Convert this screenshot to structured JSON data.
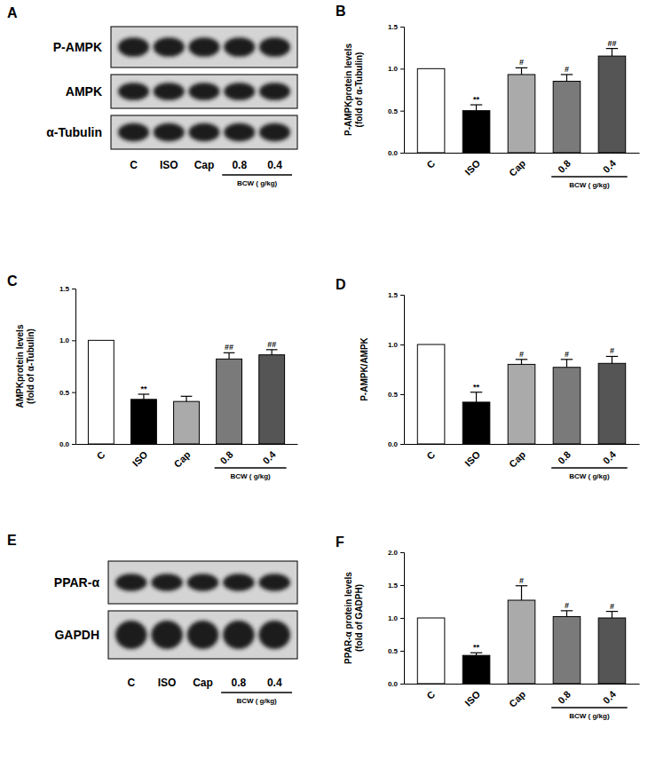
{
  "chart_data": [
    {
      "type": "bar",
      "panel_label": "B",
      "ylabel": [
        "P-AMPKprotein levels",
        "(fold of α-Tubulin)"
      ],
      "categories": [
        "C",
        "ISO",
        "Cap",
        "0.8",
        "0.4"
      ],
      "values": [
        1.0,
        0.5,
        0.93,
        0.85,
        1.15
      ],
      "errors": [
        null,
        0.07,
        0.08,
        0.08,
        0.09
      ],
      "significance": [
        null,
        "**",
        "#",
        "#",
        "##"
      ],
      "colors": [
        "#ffffff",
        "#000000",
        "#aaaaaa",
        "#7a7a7a",
        "#555555"
      ],
      "ylim": [
        0,
        1.5
      ],
      "yticks": [
        {
          "value": 0,
          "label": "0.0"
        },
        {
          "value": 0.5,
          "label": "0.5"
        },
        {
          "value": 1,
          "label": "1.0"
        },
        {
          "value": 1.5,
          "label": "1.5"
        }
      ],
      "group": {
        "label": "BCW ( g/kg)",
        "categories": [
          "0.8",
          "0.4"
        ]
      }
    },
    {
      "type": "bar",
      "panel_label": "C",
      "ylabel": [
        "AMPKprotein levels",
        "(fold of α-Tubulin)"
      ],
      "categories": [
        "C",
        "ISO",
        "Cap",
        "0.8",
        "0.4"
      ],
      "values": [
        1.0,
        0.43,
        0.41,
        0.82,
        0.86
      ],
      "errors": [
        null,
        0.05,
        0.05,
        0.06,
        0.05
      ],
      "significance": [
        null,
        "**",
        null,
        "##",
        "##"
      ],
      "colors": [
        "#ffffff",
        "#000000",
        "#aaaaaa",
        "#7a7a7a",
        "#555555"
      ],
      "ylim": [
        0,
        1.5
      ],
      "yticks": [
        {
          "value": 0,
          "label": "0.0"
        },
        {
          "value": 0.5,
          "label": "0.5"
        },
        {
          "value": 1,
          "label": "1.0"
        },
        {
          "value": 1.5,
          "label": "1.5"
        }
      ],
      "group": {
        "label": "BCW ( g/kg)",
        "categories": [
          "0.8",
          "0.4"
        ]
      }
    },
    {
      "type": "bar",
      "panel_label": "D",
      "ylabel": [
        "P-AMPK/AMPK"
      ],
      "categories": [
        "C",
        "ISO",
        "Cap",
        "0.8",
        "0.4"
      ],
      "values": [
        1.0,
        0.42,
        0.8,
        0.77,
        0.81
      ],
      "errors": [
        null,
        0.1,
        0.05,
        0.08,
        0.07
      ],
      "significance": [
        null,
        "**",
        "#",
        "#",
        "#"
      ],
      "colors": [
        "#ffffff",
        "#000000",
        "#aaaaaa",
        "#7a7a7a",
        "#555555"
      ],
      "ylim": [
        0,
        1.5
      ],
      "yticks": [
        {
          "value": 0,
          "label": "0.0"
        },
        {
          "value": 0.5,
          "label": "0.5"
        },
        {
          "value": 1,
          "label": "1.0"
        },
        {
          "value": 1.5,
          "label": "1.5"
        }
      ],
      "group": {
        "label": "BCW ( g/kg)",
        "categories": [
          "0.8",
          "0.4"
        ]
      }
    },
    {
      "type": "bar",
      "panel_label": "F",
      "ylabel": [
        "PPAR-α protein levels",
        "(fold of GADPH)"
      ],
      "categories": [
        "C",
        "ISO",
        "Cap",
        "0.8",
        "0.4"
      ],
      "values": [
        1.0,
        0.43,
        1.27,
        1.02,
        1.0
      ],
      "errors": [
        null,
        0.04,
        0.22,
        0.09,
        0.1
      ],
      "significance": [
        null,
        "**",
        "#",
        "#",
        "#"
      ],
      "colors": [
        "#ffffff",
        "#000000",
        "#aaaaaa",
        "#7a7a7a",
        "#555555"
      ],
      "ylim": [
        0,
        2
      ],
      "yticks": [
        {
          "value": 0,
          "label": "0.0"
        },
        {
          "value": 0.5,
          "label": "0.5"
        },
        {
          "value": 1,
          "label": "1.0"
        },
        {
          "value": 1.5,
          "label": "1.5"
        },
        {
          "value": 2,
          "label": "2.0"
        }
      ],
      "group": {
        "label": "BCW ( g/kg)",
        "categories": [
          "0.8",
          "0.4"
        ]
      }
    }
  ],
  "blots": [
    {
      "panel_label": "A",
      "rows": [
        "P-AMPK",
        "AMPK",
        "α-Tubulin"
      ],
      "lanes": [
        "C",
        "ISO",
        "Cap",
        "0.8",
        "0.4"
      ],
      "group": {
        "label": "BCW ( g/kg)",
        "lanes": [
          "0.8",
          "0.4"
        ]
      }
    },
    {
      "panel_label": "E",
      "rows": [
        "PPAR-α",
        "GAPDH"
      ],
      "lanes": [
        "C",
        "ISO",
        "Cap",
        "0.8",
        "0.4"
      ],
      "group": {
        "label": "BCW ( g/kg)",
        "lanes": [
          "0.8",
          "0.4"
        ]
      }
    }
  ]
}
